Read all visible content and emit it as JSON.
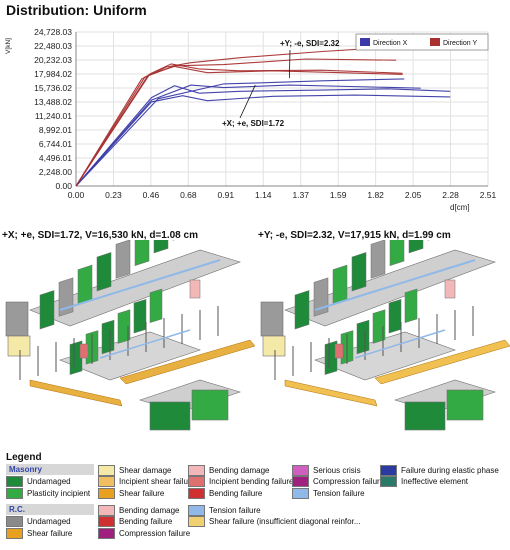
{
  "title": "Distribution: Uniform",
  "chart_data": {
    "type": "line",
    "ylabel": "V[kN]",
    "xlabel": "d[cm]",
    "y_ticks": [
      "0.00",
      "2,248.00",
      "4,496.01",
      "6,744.01",
      "8,992.01",
      "11,240.01",
      "13,488.02",
      "15,736.02",
      "17,984.02",
      "20,232.03",
      "22,480.03",
      "24,728.03"
    ],
    "x_ticks": [
      "0.00",
      "0.23",
      "0.46",
      "0.68",
      "0.91",
      "1.14",
      "1.37",
      "1.59",
      "1.82",
      "2.05",
      "2.28",
      "2.51"
    ],
    "ylim": [
      0,
      24728.03
    ],
    "xlim": [
      0,
      2.51
    ],
    "grid": true,
    "legend_position": "top-right",
    "series": [
      {
        "name": "Direction X",
        "color": "#3a3aa8",
        "values": [
          [
            0,
            0
          ],
          [
            0.46,
            14200
          ],
          [
            0.6,
            16100
          ],
          [
            0.75,
            14900
          ],
          [
            1.0,
            15200
          ],
          [
            1.5,
            15400
          ],
          [
            1.9,
            15600
          ],
          [
            2.28,
            15200
          ]
        ]
      },
      {
        "name": "Direction X",
        "color": "#3a3aa8",
        "values": [
          [
            0,
            0
          ],
          [
            0.46,
            13800
          ],
          [
            0.7,
            16200
          ],
          [
            0.9,
            15800
          ],
          [
            1.3,
            16200
          ],
          [
            1.8,
            15900
          ],
          [
            2.1,
            15700
          ]
        ]
      },
      {
        "name": "Direction X",
        "color": "#3a3aa8",
        "values": [
          [
            0,
            0
          ],
          [
            0.46,
            13500
          ],
          [
            0.65,
            14500
          ],
          [
            0.8,
            13700
          ],
          [
            1.2,
            14400
          ],
          [
            1.7,
            14600
          ],
          [
            2.28,
            14300
          ]
        ]
      },
      {
        "name": "Direction X",
        "color": "#3a3aa8",
        "values": [
          [
            0,
            0
          ],
          [
            0.5,
            14000
          ],
          [
            0.9,
            16400
          ],
          [
            1.08,
            16530
          ],
          [
            1.5,
            16900
          ],
          [
            2.0,
            17200
          ]
        ]
      },
      {
        "name": "Direction Y",
        "color": "#a83030",
        "values": [
          [
            0,
            0
          ],
          [
            0.4,
            17200
          ],
          [
            0.55,
            19100
          ],
          [
            0.7,
            19800
          ],
          [
            1.0,
            20600
          ],
          [
            1.5,
            21600
          ],
          [
            2.0,
            22400
          ]
        ]
      },
      {
        "name": "Direction Y",
        "color": "#a83030",
        "values": [
          [
            0,
            0
          ],
          [
            0.42,
            17500
          ],
          [
            0.6,
            19300
          ],
          [
            0.9,
            19500
          ],
          [
            1.4,
            20400
          ],
          [
            1.95,
            20200
          ]
        ]
      },
      {
        "name": "Direction Y",
        "color": "#a83030",
        "values": [
          [
            0,
            0
          ],
          [
            0.45,
            18000
          ],
          [
            0.58,
            19600
          ],
          [
            0.75,
            18800
          ],
          [
            1.0,
            18500
          ],
          [
            1.5,
            18600
          ],
          [
            1.99,
            18100
          ]
        ]
      },
      {
        "name": "Direction Y",
        "color": "#a83030",
        "values": [
          [
            0,
            0
          ],
          [
            0.44,
            17800
          ],
          [
            0.6,
            19200
          ],
          [
            0.8,
            18200
          ],
          [
            1.2,
            18500
          ],
          [
            1.99,
            17915
          ]
        ]
      }
    ],
    "annotations": [
      {
        "text": "+Y; -e, SDI=2.32",
        "x": 1.99,
        "y": 17915
      },
      {
        "text": "+X; +e, SDI=1.72",
        "x": 1.08,
        "y": 16530
      }
    ]
  },
  "captions": {
    "left": "+X; +e, SDI=1.72, V=16,530 kN, d=1.08 cm",
    "right": "+Y; -e, SDI=2.32, V=17,915 kN, d=1.99 cm"
  },
  "legend": {
    "title": "Legend",
    "masonry": "Masonry",
    "rc": "R.C.",
    "items": [
      {
        "label": "Undamaged",
        "color": "#1e8a3a"
      },
      {
        "label": "Plasticity incipient",
        "color": "#33aa44"
      },
      {
        "label": "Shear damage",
        "color": "#f5e9a8"
      },
      {
        "label": "Incipient shear failure",
        "color": "#f0c060"
      },
      {
        "label": "Shear failure",
        "color": "#e8a020"
      },
      {
        "label": "Bending damage",
        "color": "#f2b8b8"
      },
      {
        "label": "Incipient bending failure",
        "color": "#e07070"
      },
      {
        "label": "Bending failure",
        "color": "#d03030"
      },
      {
        "label": "Serious crisis",
        "color": "#d060c0"
      },
      {
        "label": "Compression failure",
        "color": "#a02080"
      },
      {
        "label": "Tension failure",
        "color": "#90b8e8"
      },
      {
        "label": "Failure during elastic phase",
        "color": "#2a3aa0"
      },
      {
        "label": "Ineffective element",
        "color": "#2a7a6a"
      },
      {
        "label": "Undamaged",
        "color": "#8a8a8a"
      },
      {
        "label": "Shear failure",
        "color": "#e8a020"
      },
      {
        "label": "Bending damage",
        "color": "#f2b8b8"
      },
      {
        "label": "Bending failure",
        "color": "#d03030"
      },
      {
        "label": "Compression failure",
        "color": "#a02080"
      },
      {
        "label": "Tension failure",
        "color": "#90b8e8"
      },
      {
        "label": "Shear failure (insufficient diagonal reinfor...",
        "color": "#f0d070"
      }
    ]
  }
}
